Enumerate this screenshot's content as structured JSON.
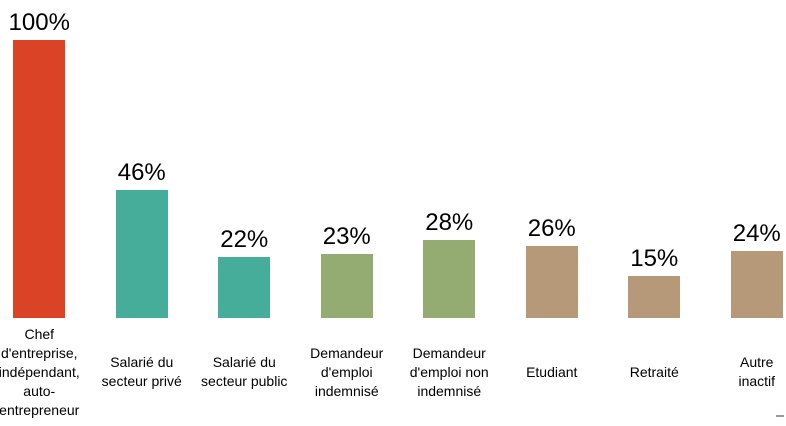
{
  "page": {
    "background": "#ffffff"
  },
  "chart_data": {
    "type": "bar",
    "title": "",
    "xlabel": "",
    "ylabel": "",
    "ylim": [
      0,
      100
    ],
    "grid": false,
    "legend": "none",
    "axes_visible": false,
    "unit": "%",
    "categories": [
      "Chef d'entreprise, indépendant, auto-entrepreneur",
      "Salarié du secteur privé",
      "Salarié du secteur public",
      "Demandeur d'emploi indemnisé",
      "Demandeur d'emploi non indemnisé",
      "Etudiant",
      "Retraité",
      "Autre inactif"
    ],
    "values": [
      100,
      46,
      22,
      23,
      28,
      26,
      15,
      24
    ],
    "value_labels": [
      "100%",
      "46%",
      "22%",
      "23%",
      "28%",
      "26%",
      "15%",
      "24%"
    ],
    "bar_colors": [
      "#DB4326",
      "#45AD99",
      "#45AD99",
      "#94AC71",
      "#94AC71",
      "#B59978",
      "#B59978",
      "#B59978"
    ],
    "palette": {
      "red": "#DB4326",
      "teal": "#45AD99",
      "olive": "#94AC71",
      "tan": "#B59978"
    },
    "category_display_lines": [
      [
        "Chef",
        "d'entreprise,",
        "indépendant,",
        "auto-",
        "entrepreneur"
      ],
      [
        "Salarié du",
        "secteur privé"
      ],
      [
        "Salarié du",
        "secteur public"
      ],
      [
        "Demandeur",
        "d'emploi",
        "indemnisé"
      ],
      [
        "Demandeur",
        "d'emploi non",
        "indemnisé"
      ],
      [
        "Etudiant"
      ],
      [
        "Retraité"
      ],
      [
        "Autre",
        "inactif"
      ]
    ]
  }
}
